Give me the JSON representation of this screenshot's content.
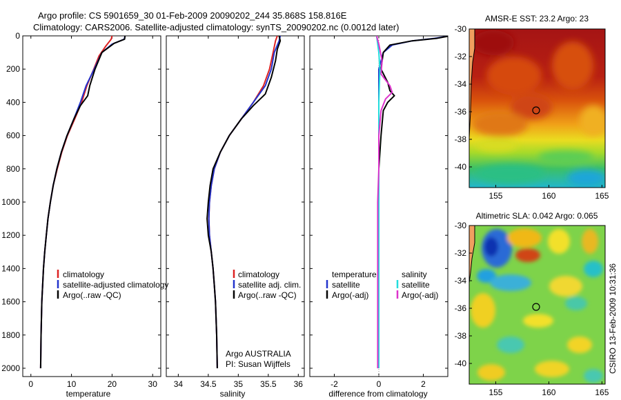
{
  "figure": {
    "title_line1": "Argo profile: CS 5901659_30 01-Feb-2009 20090202_244 35.868S 158.816E",
    "title_line2": "Climatology: CARS2006. Satellite-adjusted climatology: synTS_20090202.nc (0.0012d later)",
    "side_label": "CSIRO 13-Feb-2009 10:31:36",
    "credit_line1": "Argo AUSTRALIA",
    "credit_line2": "PI: Susan Wijffels"
  },
  "colors": {
    "climatology": "#dd2222",
    "satellite": "#2233cc",
    "argo": "#000000",
    "sal_satellite": "#22dddd",
    "sal_argo": "#dd33cc"
  },
  "chart_data": [
    {
      "type": "line",
      "id": "temperature",
      "xlabel": "temperature",
      "xticks": [
        0,
        10,
        20,
        30
      ],
      "yticks": [
        0,
        200,
        400,
        600,
        800,
        1000,
        1200,
        1400,
        1600,
        1800,
        2000
      ],
      "xlim": [
        -2,
        32
      ],
      "ylim": [
        2050,
        0
      ],
      "legend": [
        "climatology",
        "satellite-adjusted climatology",
        "Argo(..raw -QC)"
      ],
      "series": [
        {
          "name": "climatology",
          "color_key": "climatology",
          "points": [
            [
              20.0,
              0
            ],
            [
              19.8,
              20
            ],
            [
              18.5,
              60
            ],
            [
              16.8,
              120
            ],
            [
              15.5,
              200
            ],
            [
              13.8,
              300
            ],
            [
              12.5,
              400
            ],
            [
              10.8,
              500
            ],
            [
              9.0,
              600
            ],
            [
              7.6,
              700
            ],
            [
              6.5,
              800
            ],
            [
              5.5,
              900
            ],
            [
              4.8,
              1000
            ],
            [
              4.2,
              1100
            ],
            [
              3.8,
              1200
            ],
            [
              3.4,
              1300
            ],
            [
              3.1,
              1400
            ],
            [
              2.9,
              1500
            ],
            [
              2.7,
              1600
            ],
            [
              2.5,
              1800
            ],
            [
              2.4,
              2000
            ]
          ]
        },
        {
          "name": "satellite-adjusted climatology",
          "color_key": "satellite",
          "points": [
            [
              23.2,
              0
            ],
            [
              23.0,
              20
            ],
            [
              20.0,
              50
            ],
            [
              17.5,
              100
            ],
            [
              15.6,
              200
            ],
            [
              13.6,
              300
            ],
            [
              12.2,
              400
            ],
            [
              10.6,
              500
            ],
            [
              8.9,
              600
            ],
            [
              7.5,
              700
            ],
            [
              6.4,
              800
            ],
            [
              5.5,
              900
            ],
            [
              4.8,
              1000
            ],
            [
              4.2,
              1100
            ],
            [
              3.8,
              1200
            ],
            [
              3.4,
              1300
            ],
            [
              3.1,
              1400
            ],
            [
              2.9,
              1500
            ],
            [
              2.7,
              1600
            ],
            [
              2.5,
              1800
            ],
            [
              2.4,
              2000
            ]
          ]
        },
        {
          "name": "Argo(..raw -QC)",
          "color_key": "argo",
          "points": [
            [
              23.2,
              0
            ],
            [
              23.1,
              20
            ],
            [
              20.5,
              45
            ],
            [
              17.5,
              100
            ],
            [
              15.8,
              200
            ],
            [
              14.5,
              300
            ],
            [
              14.0,
              360
            ],
            [
              12.2,
              420
            ],
            [
              10.6,
              500
            ],
            [
              8.9,
              600
            ],
            [
              7.5,
              700
            ],
            [
              6.4,
              800
            ],
            [
              5.5,
              900
            ],
            [
              4.8,
              1000
            ],
            [
              4.2,
              1100
            ],
            [
              3.8,
              1200
            ],
            [
              3.4,
              1300
            ],
            [
              3.1,
              1400
            ],
            [
              2.9,
              1500
            ],
            [
              2.7,
              1600
            ],
            [
              2.5,
              1800
            ],
            [
              2.4,
              2000
            ]
          ]
        }
      ]
    },
    {
      "type": "line",
      "id": "salinity",
      "xlabel": "salinity",
      "xticks": [
        34,
        34.5,
        35,
        35.5,
        36
      ],
      "xlim": [
        33.8,
        36.1
      ],
      "ylim": [
        2050,
        0
      ],
      "legend": [
        "climatology",
        "satellite adj. clim.",
        "Argo(..raw -QC)"
      ],
      "series": [
        {
          "name": "climatology",
          "color_key": "climatology",
          "points": [
            [
              35.65,
              0
            ],
            [
              35.62,
              30
            ],
            [
              35.58,
              100
            ],
            [
              35.52,
              200
            ],
            [
              35.42,
              300
            ],
            [
              35.25,
              400
            ],
            [
              35.05,
              500
            ],
            [
              34.85,
              600
            ],
            [
              34.7,
              700
            ],
            [
              34.6,
              800
            ],
            [
              34.55,
              900
            ],
            [
              34.52,
              1000
            ],
            [
              34.51,
              1100
            ],
            [
              34.52,
              1200
            ],
            [
              34.55,
              1300
            ],
            [
              34.58,
              1400
            ],
            [
              34.6,
              1500
            ],
            [
              34.62,
              1600
            ],
            [
              34.64,
              1800
            ],
            [
              34.65,
              2000
            ]
          ]
        },
        {
          "name": "satellite adj. clim.",
          "color_key": "satellite",
          "points": [
            [
              35.7,
              0
            ],
            [
              35.68,
              30
            ],
            [
              35.6,
              100
            ],
            [
              35.55,
              200
            ],
            [
              35.45,
              300
            ],
            [
              35.25,
              400
            ],
            [
              35.05,
              500
            ],
            [
              34.85,
              600
            ],
            [
              34.7,
              700
            ],
            [
              34.6,
              800
            ],
            [
              34.55,
              900
            ],
            [
              34.52,
              1000
            ],
            [
              34.51,
              1100
            ],
            [
              34.52,
              1200
            ],
            [
              34.55,
              1300
            ],
            [
              34.58,
              1400
            ],
            [
              34.6,
              1500
            ],
            [
              34.62,
              1600
            ],
            [
              34.64,
              1800
            ],
            [
              34.65,
              2000
            ]
          ]
        },
        {
          "name": "Argo(..raw -QC)",
          "color_key": "argo",
          "points": [
            [
              35.68,
              0
            ],
            [
              35.7,
              30
            ],
            [
              35.65,
              80
            ],
            [
              35.62,
              150
            ],
            [
              35.55,
              250
            ],
            [
              35.45,
              350
            ],
            [
              35.25,
              420
            ],
            [
              35.05,
              500
            ],
            [
              34.85,
              600
            ],
            [
              34.7,
              700
            ],
            [
              34.58,
              800
            ],
            [
              34.53,
              900
            ],
            [
              34.5,
              1000
            ],
            [
              34.48,
              1100
            ],
            [
              34.5,
              1200
            ],
            [
              34.55,
              1300
            ],
            [
              34.58,
              1400
            ],
            [
              34.6,
              1500
            ],
            [
              34.62,
              1600
            ],
            [
              34.64,
              1800
            ],
            [
              34.65,
              2000
            ]
          ]
        }
      ]
    },
    {
      "type": "line",
      "id": "difference",
      "xlabel": "difference from climatology",
      "xticks": [
        -2,
        0,
        2
      ],
      "xlim": [
        -3.1,
        3.1
      ],
      "ylim": [
        2050,
        0
      ],
      "legend": [
        "temperature",
        "satellite",
        "Argo(-adj)",
        "salinity",
        "satellite",
        "Argo(-adj)"
      ],
      "series": [
        {
          "name": "satellite",
          "color_key": "satellite",
          "points": [
            [
              3.2,
              0
            ],
            [
              2.5,
              15
            ],
            [
              1.5,
              30
            ],
            [
              0.6,
              55
            ],
            [
              0.2,
              100
            ],
            [
              0.0,
              200
            ],
            [
              0.0,
              400
            ],
            [
              0.0,
              600
            ],
            [
              0.0,
              2000
            ]
          ]
        },
        {
          "name": "Argo(-adj)",
          "color_key": "argo",
          "points": [
            [
              3.2,
              0
            ],
            [
              2.6,
              15
            ],
            [
              1.5,
              30
            ],
            [
              0.5,
              55
            ],
            [
              0.2,
              100
            ],
            [
              0.1,
              200
            ],
            [
              0.4,
              280
            ],
            [
              0.5,
              330
            ],
            [
              0.7,
              360
            ],
            [
              0.4,
              400
            ],
            [
              0.2,
              450
            ],
            [
              0.1,
              600
            ],
            [
              0.0,
              800
            ],
            [
              0.0,
              2000
            ]
          ]
        },
        {
          "name": "satellite",
          "color_key": "sal_satellite",
          "points": [
            [
              -0.1,
              0
            ],
            [
              0.0,
              100
            ],
            [
              0.05,
              200
            ],
            [
              0.0,
              400
            ],
            [
              0.0,
              600
            ],
            [
              0.0,
              800
            ],
            [
              0.0,
              2000
            ]
          ]
        },
        {
          "name": "Argo(-adj)",
          "color_key": "sal_argo",
          "points": [
            [
              -0.1,
              0
            ],
            [
              0.0,
              50
            ],
            [
              0.15,
              150
            ],
            [
              0.1,
              230
            ],
            [
              0.5,
              300
            ],
            [
              0.6,
              340
            ],
            [
              0.3,
              380
            ],
            [
              0.1,
              450
            ],
            [
              0.0,
              600
            ],
            [
              0.0,
              800
            ],
            [
              -0.05,
              1000
            ],
            [
              -0.05,
              2000
            ]
          ]
        }
      ]
    },
    {
      "type": "heatmap",
      "id": "sst-map",
      "title": "AMSR-E SST: 23.2 Argo: 23",
      "xticks": [
        155,
        160,
        165
      ],
      "yticks": [
        -30,
        -32,
        -34,
        -36,
        -38,
        -40
      ],
      "xlim": [
        152.5,
        165.3
      ],
      "ylim": [
        -30,
        -41.5
      ],
      "argo_position": [
        158.8,
        -35.9
      ]
    },
    {
      "type": "heatmap",
      "id": "sla-map",
      "title": "Altimetric SLA: 0.042 Argo: 0.065",
      "xticks": [
        155,
        160,
        165
      ],
      "yticks": [
        -30,
        -32,
        -34,
        -36,
        -38,
        -40
      ],
      "xlim": [
        152.5,
        165.3
      ],
      "ylim": [
        -30,
        -41.5
      ],
      "argo_position": [
        158.8,
        -35.9
      ]
    }
  ]
}
